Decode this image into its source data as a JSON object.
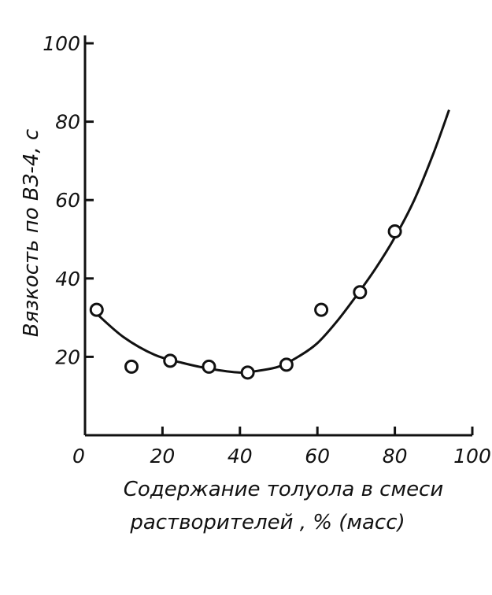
{
  "chart_data": {
    "type": "scatter",
    "title": "",
    "xlabel_line1": "Содержание толуола в смеси",
    "xlabel_line2": "растворителей , % (масс)",
    "ylabel": "Вязкость по ВЗ-4, с",
    "xlim": [
      0,
      100
    ],
    "ylim": [
      0,
      100
    ],
    "x_ticks": [
      "0",
      "20",
      "40",
      "60",
      "80",
      "100"
    ],
    "y_ticks": [
      "20",
      "40",
      "60",
      "80",
      "100"
    ],
    "grid": false,
    "points": [
      {
        "x": 3,
        "y": 32
      },
      {
        "x": 12,
        "y": 17.5
      },
      {
        "x": 22,
        "y": 19
      },
      {
        "x": 32,
        "y": 17.5
      },
      {
        "x": 42,
        "y": 16
      },
      {
        "x": 52,
        "y": 18
      },
      {
        "x": 61,
        "y": 32
      },
      {
        "x": 71,
        "y": 36.5
      },
      {
        "x": 80,
        "y": 52
      }
    ],
    "fit_curve": [
      {
        "x": 3,
        "y": 31
      },
      {
        "x": 10,
        "y": 25
      },
      {
        "x": 18,
        "y": 20.5
      },
      {
        "x": 25,
        "y": 18.5
      },
      {
        "x": 32,
        "y": 17
      },
      {
        "x": 40,
        "y": 16
      },
      {
        "x": 45,
        "y": 16.5
      },
      {
        "x": 50,
        "y": 17.5
      },
      {
        "x": 55,
        "y": 20
      },
      {
        "x": 60,
        "y": 23.5
      },
      {
        "x": 65,
        "y": 29
      },
      {
        "x": 70,
        "y": 35.5
      },
      {
        "x": 75,
        "y": 42.5
      },
      {
        "x": 80,
        "y": 50.5
      },
      {
        "x": 85,
        "y": 60
      },
      {
        "x": 90,
        "y": 72
      },
      {
        "x": 94,
        "y": 83
      }
    ],
    "colors": {
      "ink": "#111111",
      "background": "#ffffff"
    }
  }
}
